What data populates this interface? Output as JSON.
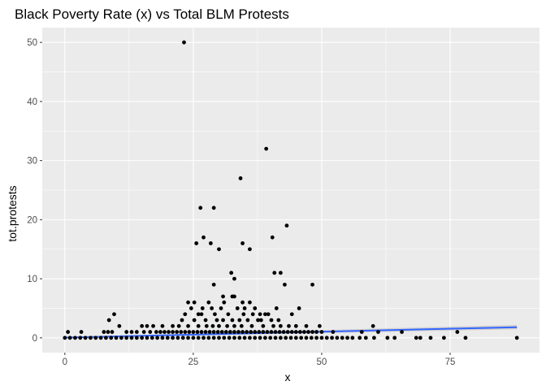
{
  "chart_data": {
    "type": "scatter",
    "title": "Black Poverty Rate (x) vs Total BLM Protests",
    "xlabel": "x",
    "ylabel": "tot.protests",
    "xlim": [
      -4.4,
      92.4
    ],
    "ylim": [
      -2.5,
      52.5
    ],
    "xticks": [
      0,
      25,
      50,
      75
    ],
    "xtick_labels": [
      "0",
      "25",
      "50",
      "75"
    ],
    "yticks": [
      0,
      10,
      20,
      30,
      40,
      50
    ],
    "ytick_labels": [
      "0",
      "10",
      "20",
      "30",
      "40",
      "50"
    ],
    "grid": true,
    "panel_background": "#ebebeb",
    "grid_color": "#ffffff",
    "point_color": "#000000",
    "smooth": {
      "type": "linear",
      "color": "#3366ff",
      "band_color": "#bdbdbd",
      "x": [
        0,
        88
      ],
      "y": [
        0.05,
        1.8
      ],
      "se_lower": [
        -0.05,
        1.45
      ],
      "se_upper": [
        0.15,
        2.2
      ]
    },
    "series": [
      {
        "values": [
          [
            23.2,
            50
          ],
          [
            39.2,
            32
          ],
          [
            34.2,
            27
          ],
          [
            26.4,
            22
          ],
          [
            29,
            22
          ],
          [
            43.2,
            19
          ],
          [
            40.4,
            17
          ],
          [
            27,
            17
          ],
          [
            28.4,
            16
          ],
          [
            25.6,
            16
          ],
          [
            34.6,
            16
          ],
          [
            36,
            15
          ],
          [
            30,
            15
          ],
          [
            42,
            11
          ],
          [
            32.4,
            11
          ],
          [
            40.8,
            11
          ],
          [
            33,
            10
          ],
          [
            29,
            9
          ],
          [
            42.8,
            9
          ],
          [
            48.2,
            9
          ],
          [
            32.6,
            7
          ],
          [
            33,
            7
          ],
          [
            30.8,
            7
          ],
          [
            24,
            6
          ],
          [
            25.2,
            6
          ],
          [
            28,
            6
          ],
          [
            36,
            6
          ],
          [
            31,
            6
          ],
          [
            34.6,
            6
          ],
          [
            24.6,
            5
          ],
          [
            26.8,
            5
          ],
          [
            28.6,
            5
          ],
          [
            30.4,
            5
          ],
          [
            33.6,
            5
          ],
          [
            35,
            5
          ],
          [
            37,
            5
          ],
          [
            41.2,
            5
          ],
          [
            45.6,
            5
          ],
          [
            23.4,
            4
          ],
          [
            26,
            4
          ],
          [
            26.6,
            4
          ],
          [
            29.2,
            4
          ],
          [
            31.8,
            4
          ],
          [
            34.8,
            4
          ],
          [
            36.6,
            4
          ],
          [
            38,
            4
          ],
          [
            39,
            4
          ],
          [
            39.6,
            4
          ],
          [
            44.2,
            4
          ],
          [
            9.6,
            4
          ],
          [
            8.6,
            3
          ],
          [
            22.8,
            3
          ],
          [
            25.2,
            3
          ],
          [
            27.4,
            3
          ],
          [
            29.6,
            3
          ],
          [
            30.8,
            3
          ],
          [
            32.6,
            3
          ],
          [
            34,
            3
          ],
          [
            35.6,
            3
          ],
          [
            37.6,
            3
          ],
          [
            38.2,
            3
          ],
          [
            40.2,
            3
          ],
          [
            41.6,
            3
          ],
          [
            10.6,
            2
          ],
          [
            15,
            2
          ],
          [
            16,
            2
          ],
          [
            17.2,
            2
          ],
          [
            19,
            2
          ],
          [
            21,
            2
          ],
          [
            22.2,
            2
          ],
          [
            24,
            2
          ],
          [
            26,
            2
          ],
          [
            27.6,
            2
          ],
          [
            28.8,
            2
          ],
          [
            30,
            2
          ],
          [
            31.6,
            2
          ],
          [
            33,
            2
          ],
          [
            34.4,
            2
          ],
          [
            36.4,
            2
          ],
          [
            38.6,
            2
          ],
          [
            40.6,
            2
          ],
          [
            42,
            2
          ],
          [
            43.6,
            2
          ],
          [
            45,
            2
          ],
          [
            47,
            2
          ],
          [
            49.6,
            2
          ],
          [
            60,
            2
          ],
          [
            0.6,
            1
          ],
          [
            3.2,
            1
          ],
          [
            7.6,
            1
          ],
          [
            8.4,
            1
          ],
          [
            9.2,
            1
          ],
          [
            12,
            1
          ],
          [
            13,
            1
          ],
          [
            14,
            1
          ],
          [
            15.4,
            1
          ],
          [
            16.6,
            1
          ],
          [
            17.8,
            1
          ],
          [
            18.6,
            1
          ],
          [
            19.4,
            1
          ],
          [
            20.2,
            1
          ],
          [
            21,
            1
          ],
          [
            21.8,
            1
          ],
          [
            22.6,
            1
          ],
          [
            23.4,
            1
          ],
          [
            24.2,
            1
          ],
          [
            25,
            1
          ],
          [
            25.8,
            1
          ],
          [
            26.6,
            1
          ],
          [
            27.4,
            1
          ],
          [
            28.2,
            1
          ],
          [
            29,
            1
          ],
          [
            29.8,
            1
          ],
          [
            30.6,
            1
          ],
          [
            31.4,
            1
          ],
          [
            32.2,
            1
          ],
          [
            33,
            1
          ],
          [
            33.8,
            1
          ],
          [
            34.6,
            1
          ],
          [
            35.4,
            1
          ],
          [
            36.2,
            1
          ],
          [
            37,
            1
          ],
          [
            37.8,
            1
          ],
          [
            38.6,
            1
          ],
          [
            39.4,
            1
          ],
          [
            40.2,
            1
          ],
          [
            41,
            1
          ],
          [
            41.8,
            1
          ],
          [
            42.6,
            1
          ],
          [
            43.4,
            1
          ],
          [
            44.2,
            1
          ],
          [
            45,
            1
          ],
          [
            45.8,
            1
          ],
          [
            46.6,
            1
          ],
          [
            47.4,
            1
          ],
          [
            48.2,
            1
          ],
          [
            49,
            1
          ],
          [
            50,
            1
          ],
          [
            52.2,
            1
          ],
          [
            57.8,
            1
          ],
          [
            61,
            1
          ],
          [
            65.6,
            1
          ],
          [
            76.4,
            1
          ],
          [
            0,
            0
          ],
          [
            1,
            0
          ],
          [
            2,
            0
          ],
          [
            3,
            0
          ],
          [
            4,
            0
          ],
          [
            5,
            0
          ],
          [
            6,
            0
          ],
          [
            7,
            0
          ],
          [
            8,
            0
          ],
          [
            9,
            0
          ],
          [
            10,
            0
          ],
          [
            11,
            0
          ],
          [
            12,
            0
          ],
          [
            13,
            0
          ],
          [
            14,
            0
          ],
          [
            15,
            0
          ],
          [
            16,
            0
          ],
          [
            17,
            0
          ],
          [
            18,
            0
          ],
          [
            19,
            0
          ],
          [
            20,
            0
          ],
          [
            21,
            0
          ],
          [
            22,
            0
          ],
          [
            23,
            0
          ],
          [
            24,
            0
          ],
          [
            25,
            0
          ],
          [
            26,
            0
          ],
          [
            27,
            0
          ],
          [
            28,
            0
          ],
          [
            29,
            0
          ],
          [
            30,
            0
          ],
          [
            31,
            0
          ],
          [
            32,
            0
          ],
          [
            33,
            0
          ],
          [
            34,
            0
          ],
          [
            35,
            0
          ],
          [
            36,
            0
          ],
          [
            37,
            0
          ],
          [
            38,
            0
          ],
          [
            39,
            0
          ],
          [
            40,
            0
          ],
          [
            41,
            0
          ],
          [
            42,
            0
          ],
          [
            43,
            0
          ],
          [
            44,
            0
          ],
          [
            45,
            0
          ],
          [
            46,
            0
          ],
          [
            47,
            0
          ],
          [
            48,
            0
          ],
          [
            49,
            0
          ],
          [
            50,
            0
          ],
          [
            51,
            0
          ],
          [
            52,
            0
          ],
          [
            53,
            0
          ],
          [
            54,
            0
          ],
          [
            55,
            0
          ],
          [
            56,
            0
          ],
          [
            57.4,
            0
          ],
          [
            58.6,
            0
          ],
          [
            60.2,
            0
          ],
          [
            62.8,
            0
          ],
          [
            64.2,
            0
          ],
          [
            68.4,
            0
          ],
          [
            69.2,
            0
          ],
          [
            71.2,
            0
          ],
          [
            73.8,
            0
          ],
          [
            78,
            0
          ],
          [
            88,
            0
          ]
        ]
      }
    ]
  }
}
